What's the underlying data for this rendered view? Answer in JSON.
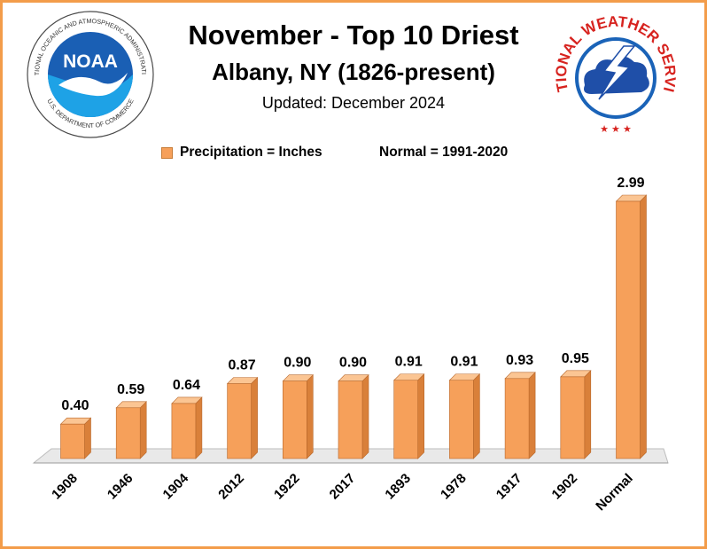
{
  "header": {
    "title": "November - Top 10 Driest",
    "subtitle": "Albany, NY (1826-present)",
    "updated": "Updated: December 2024"
  },
  "logos": {
    "noaa": {
      "text": "NOAA",
      "ring_text": "NATIONAL OCEANIC AND ATMOSPHERIC ADMINISTRATION · U.S. DEPARTMENT OF COMMERCE"
    },
    "nws": {
      "ring_text": "NATIONAL WEATHER SERVICE"
    }
  },
  "legend": {
    "series_label": "Precipitation = Inches",
    "normal_label": "Normal = 1991-2020"
  },
  "chart_data": {
    "type": "bar",
    "categories": [
      "1908",
      "1946",
      "1904",
      "2012",
      "1922",
      "2017",
      "1893",
      "1978",
      "1917",
      "1902",
      "Normal"
    ],
    "value_labels": [
      "0.40",
      "0.59",
      "0.64",
      "0.87",
      "0.90",
      "0.90",
      "0.91",
      "0.91",
      "0.93",
      "0.95",
      "2.99"
    ],
    "series": [
      {
        "name": "Precipitation = Inches",
        "values": [
          0.4,
          0.59,
          0.64,
          0.87,
          0.9,
          0.9,
          0.91,
          0.91,
          0.93,
          0.95,
          2.99
        ]
      }
    ],
    "ylim": [
      0,
      3
    ],
    "grid": false,
    "legend_position": "top",
    "bar_color": "#f6a05a",
    "bar_side_color": "#d9803a",
    "bar_top_color": "#fbc593",
    "frame_color": "#f39c4a"
  }
}
